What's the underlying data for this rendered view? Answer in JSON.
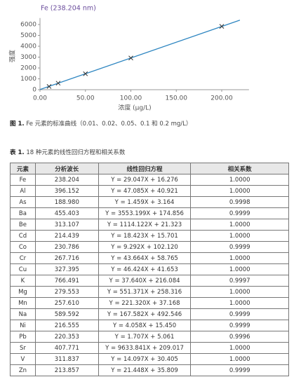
{
  "chart_data": {
    "type": "scatter",
    "title": "Fe (238.204 nm)",
    "title_color": "#6a4c9c",
    "x_label": "浓度 (μg/L)",
    "y_label": "强度",
    "xlim": [
      0,
      230
    ],
    "ylim": [
      0,
      6600
    ],
    "xticks": [
      {
        "value": 0,
        "label": "0.00"
      },
      {
        "value": 50,
        "label": "50.00"
      },
      {
        "value": 100,
        "label": "100.00"
      },
      {
        "value": 150,
        "label": "150.00"
      },
      {
        "value": 200,
        "label": "200.00"
      }
    ],
    "yticks": [
      0,
      1000,
      2000,
      3000,
      4000,
      5000,
      6000
    ],
    "series": [
      {
        "style": "line",
        "color": "#2e86c1",
        "x": [
          0,
          220
        ],
        "values": [
          16,
          6406
        ]
      },
      {
        "style": "cross",
        "color": "#333333",
        "x": [
          10,
          20,
          50,
          100,
          200
        ],
        "values": [
          300,
          600,
          1470,
          2920,
          5830
        ]
      }
    ]
  },
  "figure_caption": {
    "label": "图 1.",
    "text": "Fe 元素的标准曲线（0.01、0.02、0.05、0.1 和 0.2 mg/L）"
  },
  "table_caption": {
    "label": "表 1.",
    "text": "18 种元素的线性回归方程和相关系数"
  },
  "table": {
    "header": [
      "元素",
      "分析波长",
      "线性回归方程",
      "相关系数"
    ],
    "rows": [
      [
        "Fe",
        "238.204",
        "Y = 29.047X + 16.276",
        "1.0000"
      ],
      [
        "Al",
        "396.152",
        "Y = 47.085X + 40.921",
        "1.0000"
      ],
      [
        "As",
        "188.980",
        "Y = 1.459X + 3.164",
        "0.9998"
      ],
      [
        "Ba",
        "455.403",
        "Y = 3553.199X + 174.856",
        "0.9999"
      ],
      [
        "Be",
        "313.107",
        "Y = 1114.122X + 21.323",
        "1.0000"
      ],
      [
        "Cd",
        "214.439",
        "Y = 18.423X + 15.701",
        "1.0000"
      ],
      [
        "Co",
        "230.786",
        "Y = 9.292X + 102.120",
        "0.9999"
      ],
      [
        "Cr",
        "267.716",
        "Y = 43.664X + 58.765",
        "1.0000"
      ],
      [
        "Cu",
        "327.395",
        "Y = 46.424X + 41.653",
        "1.0000"
      ],
      [
        "K",
        "766.491",
        "Y = 37.640X + 216.084",
        "0.9997"
      ],
      [
        "Mg",
        "279.553",
        "Y = 551.371X + 258.316",
        "1.0000"
      ],
      [
        "Mn",
        "257.610",
        "Y = 221.320X + 37.168",
        "1.0000"
      ],
      [
        "Na",
        "589.592",
        "Y = 167.582X + 492.546",
        "0.9999"
      ],
      [
        "Ni",
        "216.555",
        "Y = 4.058X + 15.450",
        "0.9999"
      ],
      [
        "Pb",
        "220.353",
        "Y = 1.707X + 5.061",
        "0.9996"
      ],
      [
        "Sr",
        "407.771",
        "Y = 9633.841X + 209.017",
        "1.0000"
      ],
      [
        "V",
        "311.837",
        "Y = 14.097X + 30.405",
        "1.0000"
      ],
      [
        "Zn",
        "213.857",
        "Y = 21.448X + 35.809",
        "0.9999"
      ]
    ]
  }
}
